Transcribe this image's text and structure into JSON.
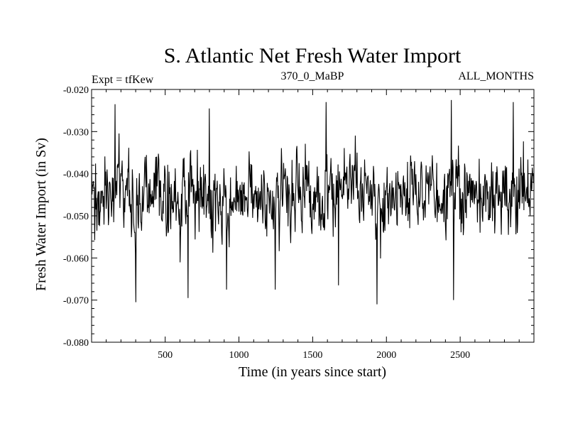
{
  "chart_data": {
    "type": "line",
    "title": "S. Atlantic Net Fresh Water Import",
    "subtitle_left": "Expt = tfKew",
    "subtitle_center": "370_0_MaBP",
    "subtitle_right": "ALL_MONTHS",
    "xlabel": "Time (in years since start)",
    "ylabel": "Fresh Water Import (in Sv)",
    "xlim": [
      1,
      3000
    ],
    "ylim": [
      -0.08,
      -0.02
    ],
    "x_ticks": [
      500,
      1000,
      1500,
      2000,
      2500
    ],
    "x_tick_labels": [
      "500",
      "1000",
      "1500",
      "2000",
      "2500"
    ],
    "y_ticks": [
      -0.08,
      -0.07,
      -0.06,
      -0.05,
      -0.04,
      -0.03,
      -0.02
    ],
    "y_tick_labels": [
      "-0.080",
      "-0.070",
      "-0.060",
      "-0.050",
      "-0.040",
      "-0.030",
      "-0.020"
    ],
    "grid": false,
    "line_color": "#000000",
    "series": [
      {
        "x": [
          1,
          150,
          300,
          450,
          600,
          750,
          900,
          1050,
          1200,
          1350,
          1500,
          1650,
          1800,
          1950,
          2100,
          2250,
          2400,
          2550,
          2700,
          2850,
          3000
        ],
        "values": [
          -0.045,
          -0.044,
          -0.046,
          -0.045,
          -0.046,
          -0.045,
          -0.046,
          -0.045,
          -0.046,
          -0.044,
          -0.043,
          -0.045,
          -0.044,
          -0.046,
          -0.045,
          -0.044,
          -0.044,
          -0.045,
          -0.044,
          -0.045,
          -0.044
        ]
      }
    ],
    "notable_peaks": [
      {
        "x": 160,
        "y": -0.0235
      },
      {
        "x": 300,
        "y": -0.0705
      },
      {
        "x": 655,
        "y": -0.0695
      },
      {
        "x": 800,
        "y": -0.0245
      },
      {
        "x": 915,
        "y": -0.0675
      },
      {
        "x": 1245,
        "y": -0.0675
      },
      {
        "x": 1590,
        "y": -0.023
      },
      {
        "x": 1675,
        "y": -0.0665
      },
      {
        "x": 1935,
        "y": -0.071
      },
      {
        "x": 2440,
        "y": -0.0225
      },
      {
        "x": 2455,
        "y": -0.07
      },
      {
        "x": 2860,
        "y": -0.023
      }
    ]
  }
}
